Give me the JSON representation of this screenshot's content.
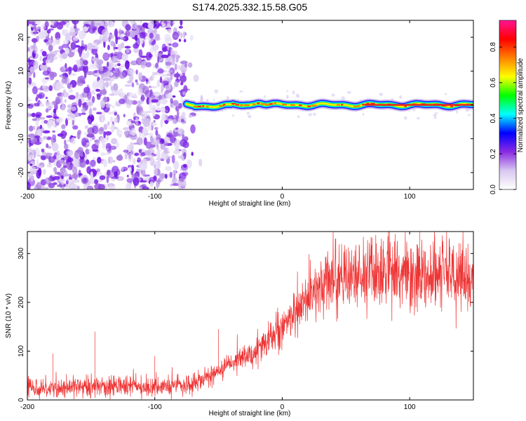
{
  "title": "S174.2025.332.15.58.G05",
  "chart_data": [
    {
      "type": "heatmap",
      "xlabel": "Height of straight line (km)",
      "ylabel": "Frequency (Hz)",
      "xlim": [
        -200,
        150
      ],
      "ylim": [
        -25,
        25
      ],
      "x_ticks": [
        -200,
        -100,
        0,
        100
      ],
      "y_ticks": [
        -20,
        -10,
        0,
        10,
        20
      ],
      "x_tick_labels": [
        "-200",
        "-100",
        "0",
        "100"
      ],
      "y_tick_labels": [
        "-20",
        "-10",
        "0",
        "10",
        "20"
      ],
      "noise_region_x": [
        -200,
        -75
      ],
      "signal_region_x": [
        -75,
        150
      ],
      "signal_frequency_hz": 0,
      "colorbar": {
        "label": "Normalized spectral amplitude",
        "range": [
          0.0,
          0.95
        ],
        "ticks": [
          0.0,
          0.2,
          0.4,
          0.6,
          0.8
        ],
        "tick_labels": [
          "0.0",
          "0.2",
          "0.4",
          "0.6",
          "0.8"
        ],
        "colors": [
          "#ffffff",
          "#d8c8f0",
          "#8a2be2",
          "#0000ff",
          "#00ffff",
          "#00ff00",
          "#ffff00",
          "#ff8000",
          "#ff0000",
          "#ff1493"
        ]
      }
    },
    {
      "type": "line",
      "xlabel": "Height of straight line (km)",
      "ylabel": "SNR (10 * v/v)",
      "xlim": [
        -200,
        150
      ],
      "ylim": [
        0,
        345
      ],
      "x_ticks": [
        -200,
        -100,
        0,
        100
      ],
      "y_ticks": [
        0,
        100,
        200,
        300
      ],
      "x_tick_labels": [
        "-200",
        "-100",
        "0",
        "100"
      ],
      "y_tick_labels": [
        "0",
        "100",
        "200",
        "300"
      ],
      "color": "#ee3333",
      "series_trend": {
        "x": [
          -200,
          -150,
          -100,
          -75,
          -60,
          -40,
          -20,
          -10,
          0,
          10,
          20,
          30,
          40,
          60,
          80,
          100,
          120,
          150
        ],
        "y": [
          25,
          27,
          28,
          30,
          45,
          75,
          100,
          125,
          150,
          175,
          205,
          235,
          250,
          255,
          258,
          255,
          252,
          250
        ]
      },
      "spikes": [
        {
          "x": -180,
          "y": 95
        },
        {
          "x": -147,
          "y": 140
        },
        {
          "x": -100,
          "y": 90
        },
        {
          "x": -50,
          "y": 145
        },
        {
          "x": 42,
          "y": 330
        },
        {
          "x": 88,
          "y": 325
        },
        {
          "x": 108,
          "y": 345
        },
        {
          "x": 140,
          "y": 320
        }
      ]
    }
  ]
}
